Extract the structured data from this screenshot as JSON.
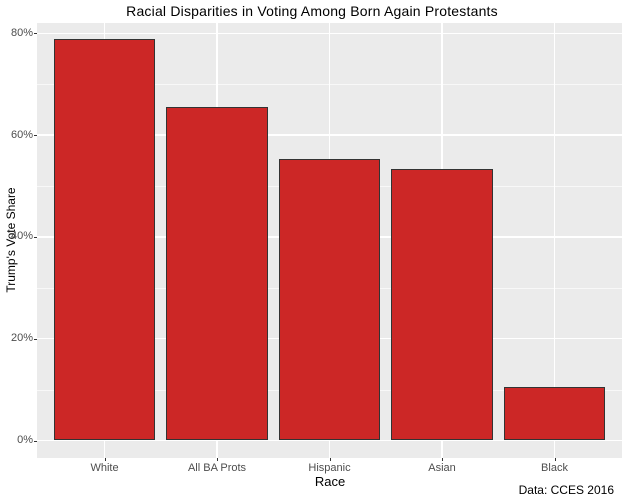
{
  "chart_data": {
    "type": "bar",
    "title": "Racial Disparities in Voting Among Born Again Protestants",
    "xlabel": "Race",
    "ylabel": "Trump's Vote Share",
    "caption": "Data: CCES 2016",
    "categories": [
      "White",
      "All BA Prots",
      "Hispanic",
      "Asian",
      "Black"
    ],
    "values": [
      78.8,
      65.5,
      55.4,
      53.4,
      10.5
    ],
    "value_unit": "%",
    "ylim": [
      0,
      80
    ],
    "yticks_major": [
      0,
      20,
      40,
      60,
      80
    ],
    "yticks_minor": [
      10,
      30,
      50,
      70
    ],
    "ytick_labels": [
      "0%",
      "20%",
      "40%",
      "60%",
      "80%"
    ],
    "legend": "none",
    "grid": {
      "horizontal": "major and minor white lines",
      "vertical": "major white line at each category center"
    },
    "colors": {
      "bar_fill": "#CC2726",
      "bar_outline": "#333333",
      "panel_background": "#EBEBEB",
      "gridline": "#FFFFFF",
      "figure_background": "#FFFFFF",
      "tick_text": "#4D4D4D",
      "title_text": "#000000"
    }
  }
}
